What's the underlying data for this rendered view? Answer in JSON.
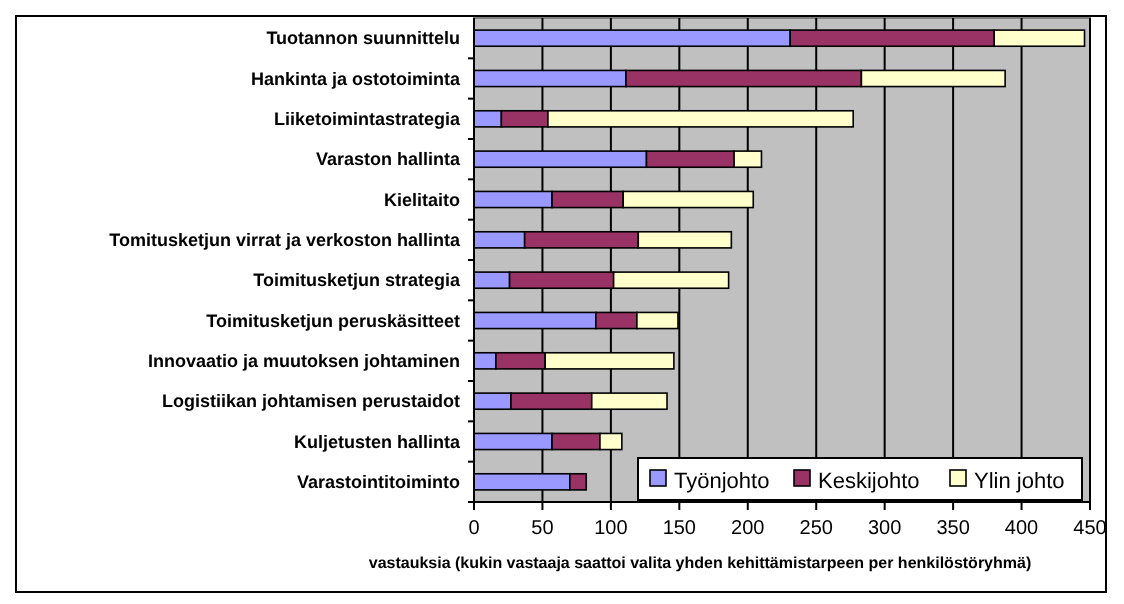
{
  "chart_data": {
    "type": "bar",
    "orientation": "horizontal",
    "stacked": true,
    "xlabel": "vastauksia (kukin vastaaja saattoi valita yhden kehittämistarpeen per henkilöstöryhmä)",
    "categories": [
      "Tuotannon  suunnittelu",
      "Hankinta ja ostotoiminta",
      "Liiketoimintastrategia",
      "Varaston hallinta",
      "Kielitaito",
      "Tomitusketjun virrat ja verkoston hallinta",
      "Toimitusketjun strategia",
      "Toimitusketjun peruskäsitteet",
      "Innovaatio ja muutoksen johtaminen",
      "Logistiikan johtamisen perustaidot",
      "Kuljetusten hallinta",
      "Varastointitoiminto"
    ],
    "series": [
      {
        "name": "Työnjohto",
        "color": "#9999ff",
        "values": [
          231,
          111,
          20,
          126,
          57,
          37,
          26,
          89,
          16,
          27,
          57,
          70
        ]
      },
      {
        "name": "Keskijohto",
        "color": "#993366",
        "values": [
          149,
          172,
          34,
          64,
          52,
          83,
          76,
          30,
          36,
          59,
          35,
          12
        ]
      },
      {
        "name": "Ylin johto",
        "color": "#ffffcc",
        "values": [
          66,
          105,
          223,
          20,
          95,
          68,
          84,
          30,
          94,
          55,
          16,
          0
        ]
      }
    ],
    "xlim": [
      0,
      450
    ],
    "xticks": [
      0,
      50,
      100,
      150,
      200,
      250,
      300,
      350,
      400,
      450
    ],
    "grid": "x",
    "legend": "bottom right"
  }
}
